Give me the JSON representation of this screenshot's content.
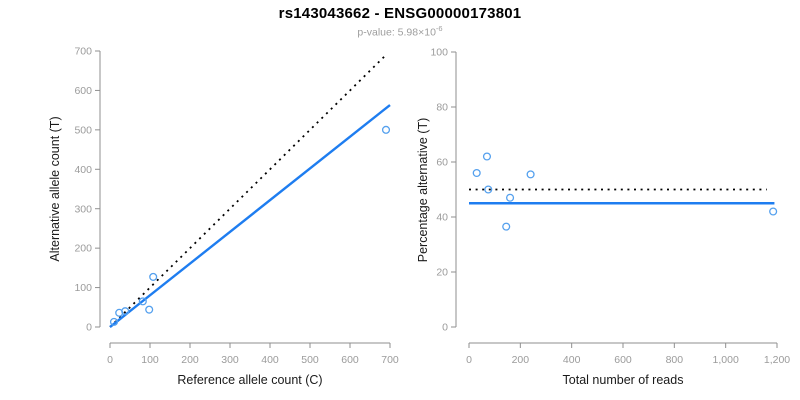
{
  "header": {
    "title": "rs143043662 - ENSG00000173801",
    "pvalue_base": "p-value: 5.98×10",
    "pvalue_exponent": "-6"
  },
  "colors": {
    "fit_line_blue": "#1E7DF0",
    "point_blue": "#54A0EE",
    "dotted_line_black": "#000000",
    "axis_gray": "#8F8F8F",
    "tick_label_gray": "#9B9B9B",
    "axis_title_black": "#1A1A1A",
    "title_black": "#000000",
    "subtitle_gray": "#9E9E9E"
  },
  "chart_data": [
    {
      "type": "scatter",
      "name": "allele-counts-scatter",
      "xlabel": "Reference allele count (C)",
      "ylabel": "Alternative allele count (T)",
      "xlim": [
        0,
        700
      ],
      "ylim": [
        0,
        700
      ],
      "grid": false,
      "xtick_values": [
        0,
        100,
        200,
        300,
        400,
        500,
        600,
        700
      ],
      "xtick_labels": [
        "0",
        "100",
        "200",
        "300",
        "400",
        "500",
        "600",
        "700"
      ],
      "ytick_values": [
        0,
        100,
        200,
        300,
        400,
        500,
        600,
        700
      ],
      "ytick_labels": [
        "0",
        "100",
        "200",
        "300",
        "400",
        "500",
        "600",
        "700"
      ],
      "points": [
        [
          10,
          13
        ],
        [
          23,
          36
        ],
        [
          38,
          40
        ],
        [
          82,
          65
        ],
        [
          98,
          44
        ],
        [
          108,
          127
        ],
        [
          690,
          500
        ]
      ],
      "lines": [
        {
          "name": "identity-line",
          "style": "dotted",
          "color": "#000000",
          "x": [
            0,
            690
          ],
          "y": [
            0,
            690
          ]
        },
        {
          "name": "fit-line",
          "style": "solid",
          "color": "#1E7DF0",
          "x": [
            0,
            700
          ],
          "y": [
            0,
            563
          ]
        }
      ]
    },
    {
      "type": "scatter",
      "name": "percentage-alternative-scatter",
      "xlabel": "Total number of reads",
      "ylabel": "Percentage alternative (T)",
      "xlim": [
        0,
        1200
      ],
      "ylim": [
        0,
        100
      ],
      "grid": false,
      "xtick_values": [
        0,
        200,
        400,
        600,
        800,
        1000,
        1200
      ],
      "xtick_labels": [
        "0",
        "200",
        "400",
        "600",
        "800",
        "1,000",
        "1,200"
      ],
      "ytick_values": [
        0,
        20,
        40,
        60,
        80,
        100
      ],
      "ytick_labels": [
        "0",
        "20",
        "40",
        "60",
        "80",
        "100"
      ],
      "points": [
        [
          30,
          56
        ],
        [
          70,
          62
        ],
        [
          75,
          50
        ],
        [
          145,
          36.5
        ],
        [
          160,
          47
        ],
        [
          240,
          55.5
        ],
        [
          1185,
          42
        ]
      ],
      "lines": [
        {
          "name": "expected-50pct-line",
          "style": "dotted",
          "color": "#000000",
          "x": [
            0,
            1160
          ],
          "y": [
            50,
            50
          ]
        },
        {
          "name": "fit-line",
          "style": "solid",
          "color": "#1E7DF0",
          "x": [
            0,
            1190
          ],
          "y": [
            45,
            45
          ]
        }
      ]
    }
  ]
}
